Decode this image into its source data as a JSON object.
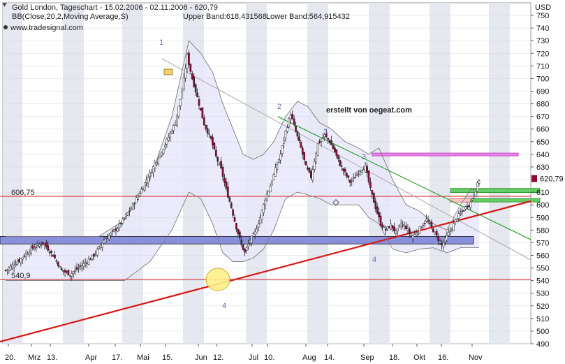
{
  "header": {
    "title": "Gold London, Tageschart - 15.02.2006 - 02.11.2006 - 620,79",
    "indicator_label": "BB(Close,20,2,Moving Average,S)",
    "upper_band": "Upper Band:618,431568",
    "lower_band": "Lower Band:564,915432",
    "source": "www.tradesignal.com",
    "currency": "USD"
  },
  "annotation": "erstellt von oegeat.com",
  "colors": {
    "background": "#ffffff",
    "stripe": "#e6e8f0",
    "band_fill": "#e8e8fa",
    "candle_up": "#ffffff",
    "candle_down": "#8b0a3a",
    "resistance_line": "#d81818",
    "trend_line": "#d81818",
    "green_line": "#119a11",
    "grey_line": "#aaaaaa",
    "support_zone": "#8890dc",
    "pink_zone": "#ee88ee",
    "green_zone": "#66cc66",
    "label_box": "#f3d36a"
  },
  "chart_data": {
    "type": "candlestick",
    "x_labels": [
      "20.",
      "Mrz",
      "13.",
      "Apr",
      "17.",
      "Mai",
      "15.",
      "Jun",
      "12.",
      "Jul",
      "10.",
      "Aug",
      "14.",
      "Sep",
      "18.",
      "Okt",
      "16.",
      "Nov"
    ],
    "ylim": [
      490,
      760
    ],
    "y_ticks": [
      490,
      500,
      510,
      520,
      530,
      540,
      550,
      560,
      570,
      580,
      590,
      600,
      610,
      620,
      630,
      640,
      650,
      660,
      670,
      680,
      690,
      700,
      710,
      720,
      730,
      740,
      750
    ],
    "last_value": "620,79",
    "horizontal_levels": [
      {
        "label": "606,75",
        "value": 606.75
      },
      {
        "label": "540,9",
        "value": 540.9
      }
    ],
    "support_zone": [
      569,
      575
    ],
    "wave_labels": [
      "1",
      "2",
      "3",
      "3",
      "4",
      "4"
    ],
    "close_path": [
      [
        0,
        548
      ],
      [
        8,
        556
      ],
      [
        15,
        565
      ],
      [
        22,
        570
      ],
      [
        28,
        560
      ],
      [
        33,
        548
      ],
      [
        38,
        545
      ],
      [
        45,
        552
      ],
      [
        52,
        560
      ],
      [
        58,
        572
      ],
      [
        66,
        582
      ],
      [
        73,
        595
      ],
      [
        80,
        612
      ],
      [
        87,
        630
      ],
      [
        94,
        648
      ],
      [
        100,
        665
      ],
      [
        104,
        690
      ],
      [
        107,
        718
      ],
      [
        110,
        700
      ],
      [
        113,
        685
      ],
      [
        117,
        664
      ],
      [
        121,
        652
      ],
      [
        124,
        638
      ],
      [
        127,
        628
      ],
      [
        130,
        612
      ],
      [
        133,
        598
      ],
      [
        136,
        582
      ],
      [
        139,
        568
      ],
      [
        141,
        562
      ],
      [
        144,
        572
      ],
      [
        147,
        578
      ],
      [
        150,
        590
      ],
      [
        153,
        605
      ],
      [
        156,
        615
      ],
      [
        159,
        628
      ],
      [
        162,
        640
      ],
      [
        165,
        658
      ],
      [
        168,
        672
      ],
      [
        171,
        658
      ],
      [
        174,
        645
      ],
      [
        177,
        630
      ],
      [
        180,
        622
      ],
      [
        184,
        648
      ],
      [
        188,
        655
      ],
      [
        191,
        650
      ],
      [
        194,
        642
      ],
      [
        197,
        632
      ],
      [
        200,
        625
      ],
      [
        203,
        618
      ],
      [
        206,
        622
      ],
      [
        209,
        628
      ],
      [
        212,
        630
      ],
      [
        215,
        612
      ],
      [
        218,
        598
      ],
      [
        221,
        585
      ],
      [
        224,
        580
      ],
      [
        227,
        584
      ],
      [
        230,
        578
      ],
      [
        233,
        585
      ],
      [
        236,
        582
      ],
      [
        239,
        575
      ],
      [
        242,
        578
      ],
      [
        245,
        583
      ],
      [
        248,
        588
      ],
      [
        251,
        582
      ],
      [
        254,
        575
      ],
      [
        257,
        568
      ],
      [
        260,
        575
      ],
      [
        263,
        582
      ],
      [
        266,
        590
      ],
      [
        268,
        593
      ],
      [
        271,
        598
      ],
      [
        274,
        602
      ],
      [
        277,
        612
      ],
      [
        279,
        620
      ]
    ],
    "upper_band_path": [
      [
        0,
        575
      ],
      [
        20,
        575
      ],
      [
        40,
        575
      ],
      [
        55,
        575
      ],
      [
        70,
        588
      ],
      [
        85,
        620
      ],
      [
        98,
        670
      ],
      [
        108,
        730
      ],
      [
        115,
        720
      ],
      [
        122,
        705
      ],
      [
        128,
        680
      ],
      [
        134,
        660
      ],
      [
        140,
        640
      ],
      [
        146,
        636
      ],
      [
        152,
        640
      ],
      [
        158,
        650
      ],
      [
        165,
        670
      ],
      [
        172,
        682
      ],
      [
        178,
        678
      ],
      [
        185,
        665
      ],
      [
        192,
        660
      ],
      [
        200,
        650
      ],
      [
        208,
        645
      ],
      [
        214,
        640
      ],
      [
        220,
        645
      ],
      [
        228,
        620
      ],
      [
        236,
        600
      ],
      [
        244,
        595
      ],
      [
        252,
        585
      ],
      [
        260,
        580
      ],
      [
        268,
        600
      ],
      [
        274,
        612
      ],
      [
        279,
        612
      ]
    ],
    "lower_band_path": [
      [
        0,
        540
      ],
      [
        20,
        540
      ],
      [
        40,
        540
      ],
      [
        55,
        540
      ],
      [
        70,
        540
      ],
      [
        85,
        555
      ],
      [
        98,
        580
      ],
      [
        108,
        610
      ],
      [
        115,
        605
      ],
      [
        122,
        585
      ],
      [
        128,
        562
      ],
      [
        134,
        555
      ],
      [
        140,
        555
      ],
      [
        146,
        558
      ],
      [
        152,
        565
      ],
      [
        158,
        580
      ],
      [
        165,
        605
      ],
      [
        172,
        610
      ],
      [
        178,
        608
      ],
      [
        185,
        605
      ],
      [
        192,
        600
      ],
      [
        200,
        600
      ],
      [
        208,
        600
      ],
      [
        214,
        590
      ],
      [
        220,
        585
      ],
      [
        228,
        565
      ],
      [
        236,
        562
      ],
      [
        244,
        565
      ],
      [
        252,
        566
      ],
      [
        260,
        562
      ],
      [
        268,
        566
      ],
      [
        274,
        566
      ],
      [
        279,
        566
      ]
    ]
  }
}
